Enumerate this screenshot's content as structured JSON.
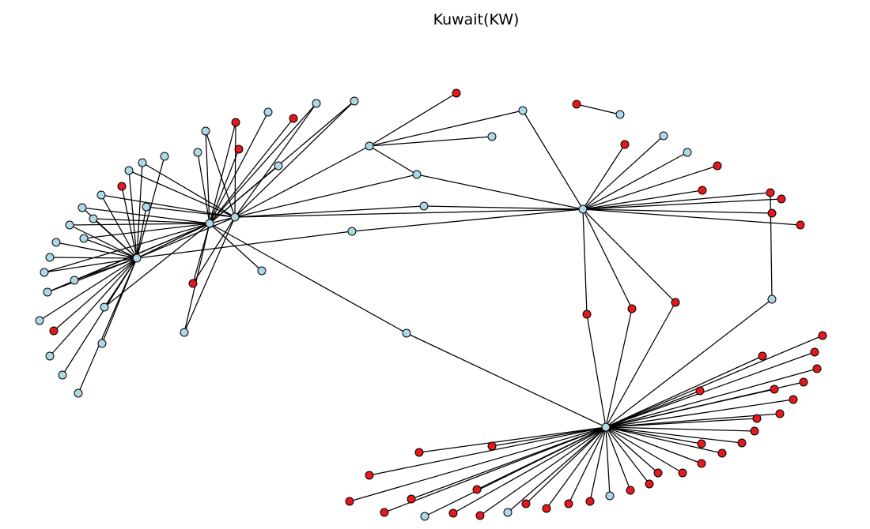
{
  "title": "Kuwait(KW)",
  "colors": {
    "blue": "#add8e6",
    "red": "#e31a1c",
    "edge": "#000000"
  }
}
